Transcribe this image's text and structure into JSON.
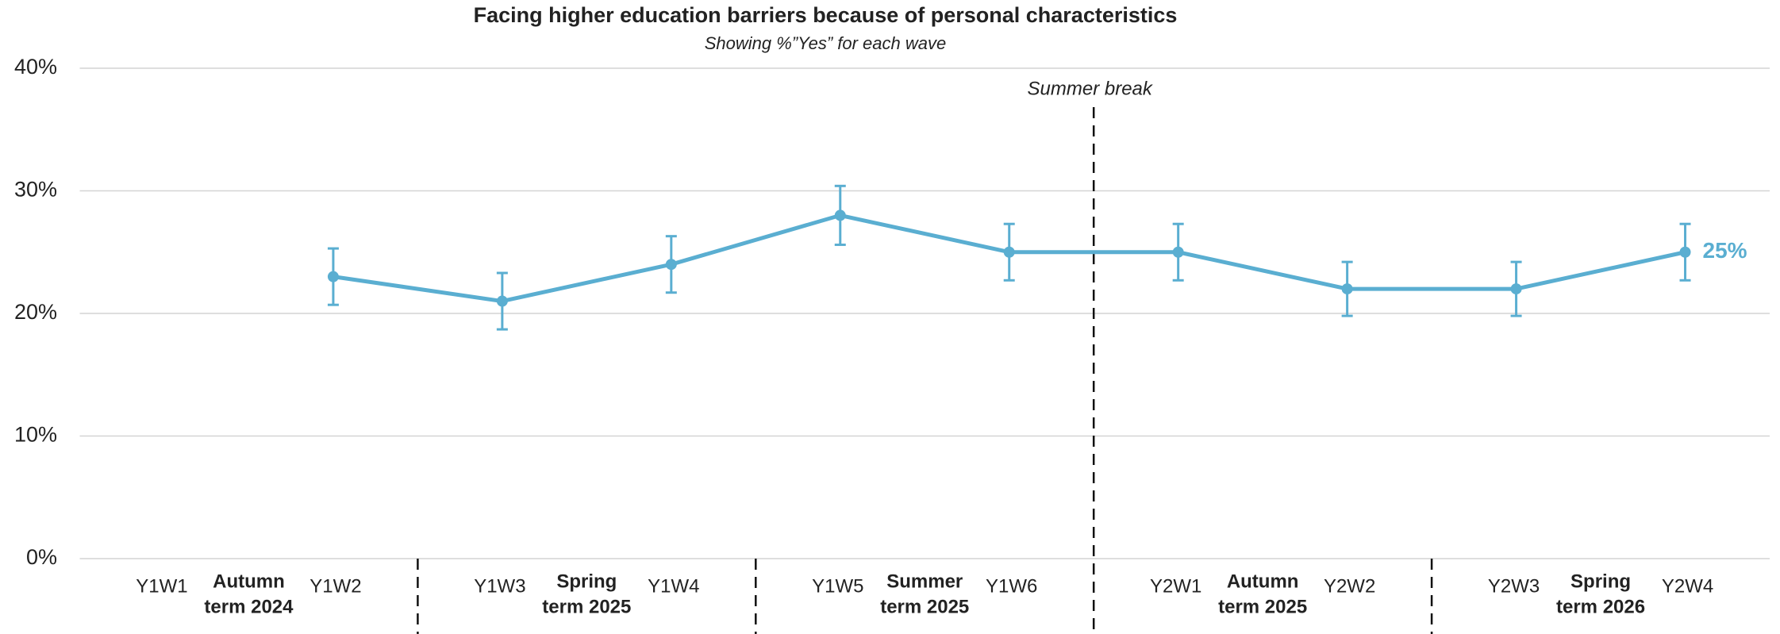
{
  "chart_data": {
    "type": "line",
    "title": "Facing higher education barriers because of personal characteristics",
    "subtitle": "Showing %”Yes” for each wave",
    "categories": [
      "Y1W1",
      "Y1W2",
      "Y1W3",
      "Y1W4",
      "Y1W5",
      "Y1W6",
      "Y2W1",
      "Y2W2",
      "Y2W3",
      "Y2W4"
    ],
    "terms": [
      [
        "Autumn",
        "term 2024"
      ],
      [
        "Spring",
        "term 2025"
      ],
      [
        "Summer",
        "term 2025"
      ],
      [
        "Autumn",
        "term 2025"
      ],
      [
        "Spring",
        "term 2026"
      ]
    ],
    "annotation": "Summer break",
    "series": [
      {
        "name": "Yes",
        "color": "#5aaed1",
        "values": [
          null,
          23,
          21,
          24,
          28,
          25,
          25,
          22,
          22,
          25
        ],
        "errors": [
          null,
          2.3,
          2.3,
          2.3,
          2.4,
          2.3,
          2.3,
          2.2,
          2.2,
          2.3
        ],
        "value_labels": [
          null,
          null,
          null,
          null,
          null,
          null,
          null,
          null,
          null,
          "25%"
        ]
      }
    ],
    "ylim": [
      0,
      40
    ],
    "yticks": [
      {
        "value": 0,
        "label": "0%"
      },
      {
        "value": 10,
        "label": "10%"
      },
      {
        "value": 20,
        "label": "20%"
      },
      {
        "value": 30,
        "label": "30%"
      },
      {
        "value": 40,
        "label": "40%"
      }
    ],
    "grid": true
  }
}
